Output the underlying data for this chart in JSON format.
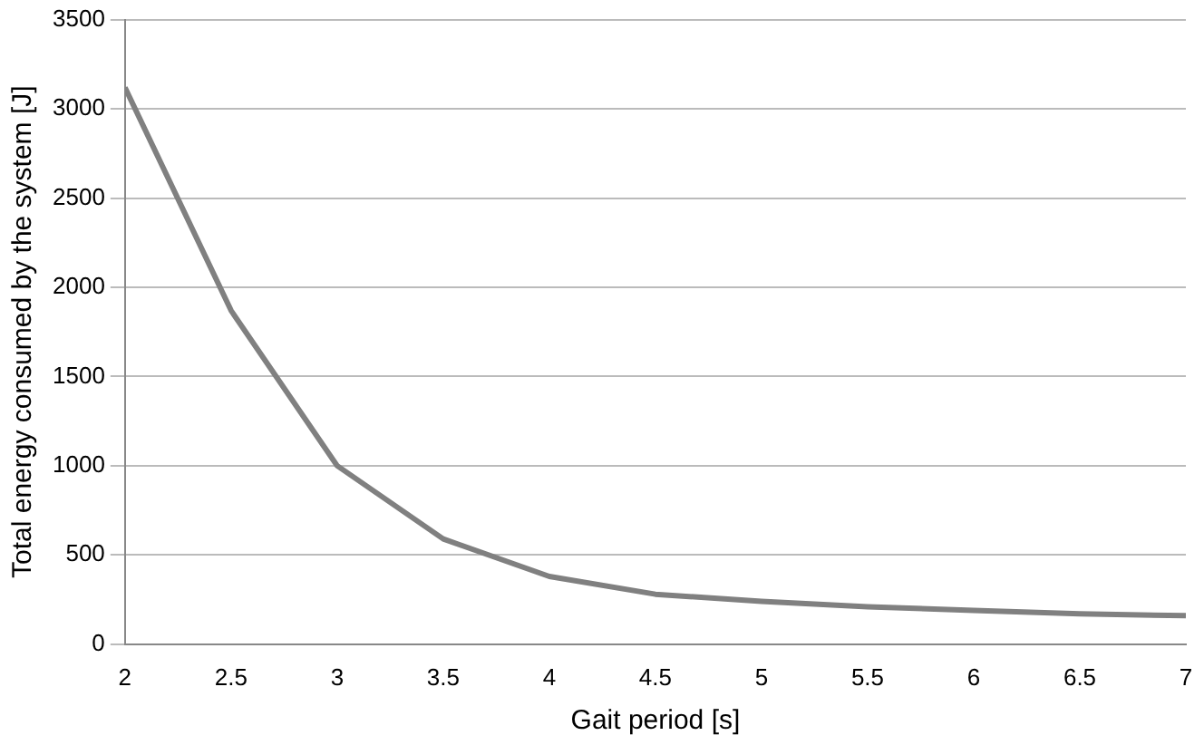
{
  "chart_data": {
    "type": "line",
    "xlabel": "Gait period [s]",
    "ylabel": "Total energy consumed by the system [J]",
    "x": [
      2,
      2.5,
      3,
      3.5,
      4,
      4.5,
      5,
      5.5,
      6,
      6.5,
      7
    ],
    "series": [
      {
        "color": "#808080",
        "values": [
          3120,
          1870,
          1000,
          590,
          380,
          280,
          240,
          210,
          190,
          170,
          160
        ]
      }
    ],
    "xlim": [
      2,
      7
    ],
    "xticks": [
      2,
      2.5,
      3,
      3.5,
      4,
      4.5,
      5,
      5.5,
      6,
      6.5,
      7
    ],
    "ylim": [
      0,
      3500
    ],
    "yticks": [
      0,
      500,
      1000,
      1500,
      2000,
      2500,
      3000,
      3500
    ],
    "grid": "y",
    "legend": false,
    "marker": "none",
    "line_style": "solid"
  }
}
